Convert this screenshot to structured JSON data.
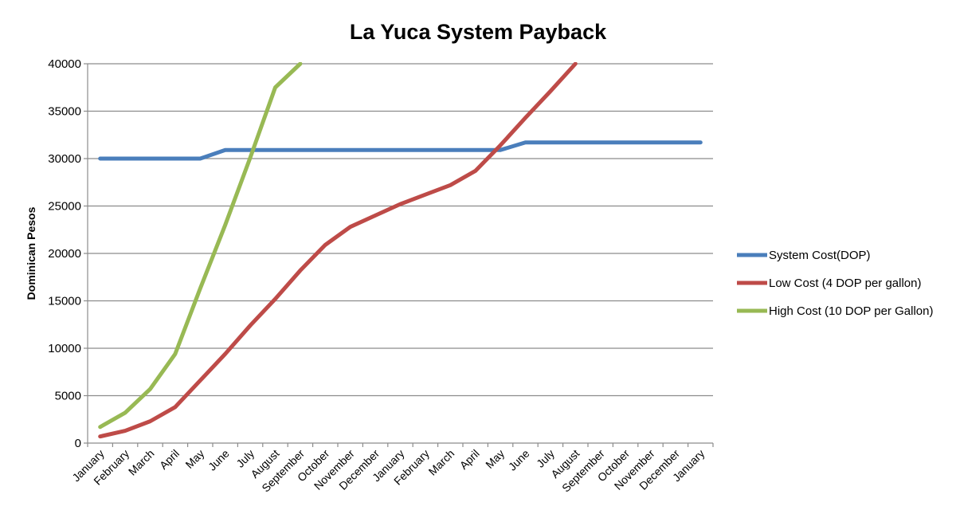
{
  "chart_data": {
    "type": "line",
    "title": "La Yuca System Payback",
    "xlabel": "",
    "ylabel": "Dominican Pesos",
    "ylim": [
      0,
      40000
    ],
    "yticks": [
      0,
      5000,
      10000,
      15000,
      20000,
      25000,
      30000,
      35000,
      40000
    ],
    "grid": true,
    "legend_position": "right",
    "categories": [
      "January",
      "February",
      "March",
      "April",
      "May",
      "June",
      "July",
      "August",
      "September",
      "October",
      "November",
      "December",
      "January",
      "February",
      "March",
      "April",
      "May",
      "June",
      "July",
      "August",
      "September",
      "October",
      "November",
      "December",
      "January"
    ],
    "series": [
      {
        "name": "System Cost(DOP)",
        "color": "#4a7ebb",
        "values": [
          30000,
          30000,
          30000,
          30000,
          30000,
          30900,
          30900,
          30900,
          30900,
          30900,
          30900,
          30900,
          30900,
          30900,
          30900,
          30900,
          30900,
          31700,
          31700,
          31700,
          31700,
          31700,
          31700,
          31700,
          31700
        ]
      },
      {
        "name": "Low Cost (4 DOP per gallon)",
        "color": "#be4b48",
        "values": [
          700,
          1300,
          2300,
          3800,
          6600,
          9400,
          12400,
          15200,
          18200,
          20900,
          22800,
          24000,
          25200,
          26200,
          27200,
          28700,
          31400,
          34300,
          37100,
          40000,
          null,
          null,
          null,
          null,
          null
        ]
      },
      {
        "name": "High Cost (10 DOP per Gallon)",
        "color": "#98b954",
        "values": [
          1700,
          3200,
          5700,
          9400,
          16300,
          23000,
          30100,
          37500,
          40000,
          null,
          null,
          null,
          null,
          null,
          null,
          null,
          null,
          null,
          null,
          null,
          null,
          null,
          null,
          null,
          null
        ]
      }
    ]
  }
}
